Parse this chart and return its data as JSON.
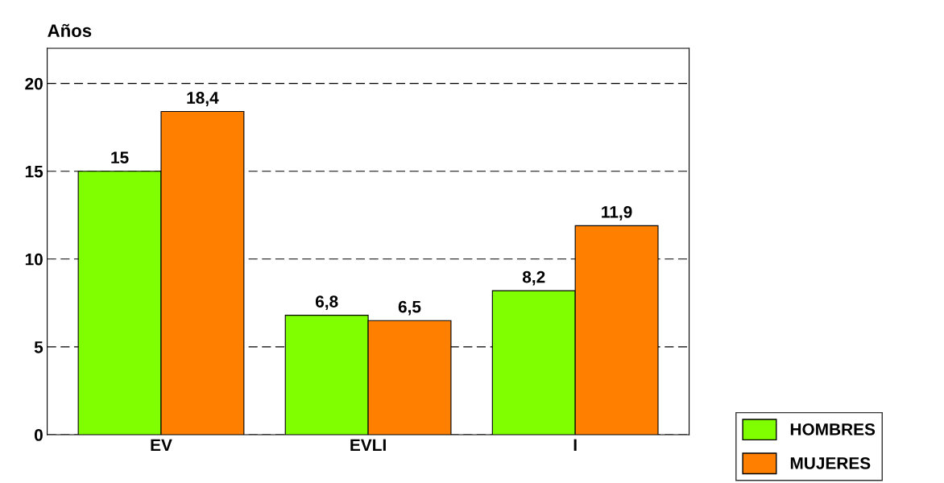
{
  "chart_data": {
    "type": "bar",
    "ylabel": "Años",
    "categories": [
      "EV",
      "EVLI",
      "I"
    ],
    "series": [
      {
        "name": "HOMBRES",
        "color": "#80ff00",
        "values": [
          15,
          6.8,
          8.2
        ]
      },
      {
        "name": "MUJERES",
        "color": "#ff8000",
        "values": [
          18.4,
          6.5,
          11.9
        ]
      }
    ],
    "value_labels": [
      [
        "15",
        "6,8",
        "8,2"
      ],
      [
        "18,4",
        "6,5",
        "11,9"
      ]
    ],
    "ylim": [
      0,
      22
    ],
    "yticks": [
      0,
      5,
      10,
      15,
      20
    ],
    "grid": "y",
    "legend": "bottom right"
  }
}
